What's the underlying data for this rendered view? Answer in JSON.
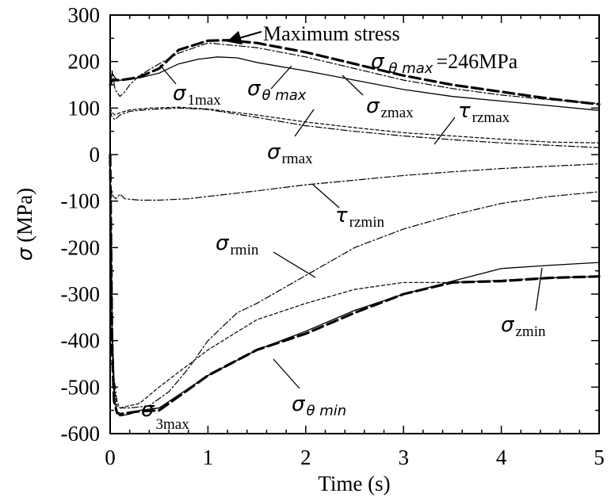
{
  "chart_data": {
    "type": "line",
    "title": "",
    "xlabel": "Time (s)",
    "ylabel_symbol": "σ",
    "ylabel_unit": " (MPa)",
    "xlim": [
      0,
      5
    ],
    "ylim": [
      -600,
      300
    ],
    "x_ticks": [
      "0",
      "1",
      "2",
      "3",
      "4",
      "5"
    ],
    "y_ticks": [
      "300",
      "200",
      "100",
      "0",
      "-100",
      "-200",
      "-300",
      "-400",
      "-500",
      "-600"
    ],
    "grid": false,
    "series": [
      {
        "name": "σθmax",
        "style": "thick-dash",
        "x": [
          0,
          0.02,
          0.05,
          0.1,
          0.2,
          0.3,
          0.5,
          0.7,
          1.0,
          1.2,
          1.5,
          2.0,
          2.5,
          3.0,
          3.5,
          4.0,
          4.5,
          5.0
        ],
        "y": [
          150,
          160,
          160,
          160,
          163,
          167,
          185,
          225,
          245,
          246,
          240,
          220,
          195,
          170,
          150,
          135,
          120,
          108
        ]
      },
      {
        "name": "σ1max",
        "style": "thin-solid",
        "x": [
          0,
          0.02,
          0.05,
          0.08,
          0.12,
          0.2,
          0.3,
          0.5,
          0.7,
          0.9,
          1.1,
          1.3,
          1.5,
          2.0,
          2.5,
          3.0,
          3.5,
          4.0,
          4.5,
          5.0
        ],
        "y": [
          150,
          175,
          165,
          160,
          160,
          163,
          165,
          175,
          195,
          205,
          210,
          208,
          198,
          180,
          160,
          140,
          125,
          115,
          105,
          95
        ]
      },
      {
        "name": "σzmax",
        "style": "thin-dash-dot",
        "x": [
          0,
          0.02,
          0.05,
          0.1,
          0.15,
          0.2,
          0.3,
          0.5,
          0.7,
          1.0,
          1.5,
          2.0,
          2.5,
          3.0,
          3.5,
          4.0,
          4.5,
          5.0
        ],
        "y": [
          150,
          180,
          140,
          125,
          135,
          150,
          170,
          195,
          218,
          240,
          230,
          210,
          185,
          160,
          142,
          128,
          118,
          110
        ]
      },
      {
        "name": "σrmax",
        "style": "thin-short-dash",
        "x": [
          0,
          0.02,
          0.05,
          0.1,
          0.2,
          0.4,
          0.7,
          1.0,
          1.5,
          2.0,
          2.5,
          3.0,
          3.5,
          4.0,
          4.5,
          5.0
        ],
        "y": [
          100,
          90,
          85,
          90,
          96,
          100,
          102,
          98,
          85,
          70,
          58,
          47,
          40,
          33,
          27,
          25
        ]
      },
      {
        "name": "τrzmax",
        "style": "thin-dash-dot",
        "x": [
          0,
          0.02,
          0.05,
          0.1,
          0.2,
          0.4,
          0.7,
          1.0,
          1.5,
          2.0,
          2.5,
          3.0,
          3.5,
          4.0,
          4.5,
          5.0
        ],
        "y": [
          95,
          80,
          75,
          85,
          93,
          97,
          100,
          97,
          80,
          62,
          50,
          40,
          32,
          25,
          20,
          15
        ]
      },
      {
        "name": "τrzmin",
        "style": "thin-dash-dot",
        "x": [
          0,
          0.03,
          0.06,
          0.1,
          0.15,
          0.3,
          0.5,
          0.8,
          1.0,
          1.5,
          2.0,
          2.5,
          3.0,
          3.5,
          4.0,
          4.5,
          5.0
        ],
        "y": [
          -60,
          -90,
          -95,
          -85,
          -95,
          -98,
          -98,
          -95,
          -90,
          -78,
          -65,
          -55,
          -45,
          -37,
          -30,
          -25,
          -20
        ]
      },
      {
        "name": "σrmin",
        "style": "thin-dash-dot",
        "x": [
          0,
          0.02,
          0.04,
          0.07,
          0.1,
          0.2,
          0.4,
          0.6,
          0.8,
          1.0,
          1.3,
          1.5,
          2.0,
          2.5,
          3.0,
          3.5,
          4.0,
          4.5,
          5.0
        ],
        "y": [
          0,
          -350,
          -480,
          -530,
          -545,
          -545,
          -540,
          -510,
          -460,
          -400,
          -340,
          -320,
          -260,
          -200,
          -160,
          -130,
          -105,
          -90,
          -80
        ]
      },
      {
        "name": "σzmin",
        "style": "thin-solid",
        "x": [
          0,
          0.02,
          0.04,
          0.07,
          0.1,
          0.2,
          0.3,
          0.5,
          1.0,
          1.5,
          2.0,
          2.5,
          3.0,
          3.5,
          4.0,
          4.5,
          5.0
        ],
        "y": [
          0,
          -400,
          -520,
          -555,
          -562,
          -558,
          -550,
          -545,
          -475,
          -420,
          -380,
          -335,
          -300,
          -272,
          -245,
          -238,
          -232
        ]
      },
      {
        "name": "σ3max",
        "style": "thin-short-dash",
        "x": [
          0,
          0.02,
          0.04,
          0.07,
          0.1,
          0.2,
          0.3,
          0.5,
          1.0,
          1.5,
          2.0,
          2.5,
          3.0,
          3.5,
          4.0,
          4.5,
          5.0
        ],
        "y": [
          0,
          -380,
          -500,
          -540,
          -545,
          -540,
          -535,
          -500,
          -420,
          -355,
          -320,
          -290,
          -275,
          -275,
          -270,
          -265,
          -262
        ]
      },
      {
        "name": "σθmin",
        "style": "thick-dash",
        "x": [
          0,
          0.02,
          0.04,
          0.07,
          0.1,
          0.2,
          0.3,
          0.5,
          1.0,
          1.5,
          2.0,
          2.5,
          3.0,
          3.5,
          4.0,
          4.5,
          5.0
        ],
        "y": [
          0,
          -420,
          -530,
          -555,
          -558,
          -555,
          -552,
          -550,
          -475,
          -420,
          -385,
          -340,
          -300,
          -275,
          -272,
          -265,
          -262
        ]
      }
    ],
    "annotations": {
      "max_stress": {
        "text": "Maximum stress"
      },
      "theta_max_value": {
        "sym": "σ",
        "sub": "θ max",
        "value": "=246MPa"
      },
      "labels": {
        "s1max": {
          "sym": "σ",
          "sub": "1max"
        },
        "sthmax": {
          "sym": "σ",
          "sub": "θ max"
        },
        "szmax": {
          "sym": "σ",
          "sub": "zmax"
        },
        "trzmax": {
          "sym": "τ",
          "sub": "rzmax"
        },
        "srmax": {
          "sym": "σ",
          "sub": "rmax"
        },
        "trzmin": {
          "sym": "τ",
          "sub": "rzmin"
        },
        "srmin": {
          "sym": "σ",
          "sub": "rmin"
        },
        "szmin": {
          "sym": "σ",
          "sub": "zmin"
        },
        "s3max": {
          "sym": "σ",
          "sub": "3max"
        },
        "sthmin": {
          "sym": "σ",
          "sub": "θ min"
        }
      }
    }
  }
}
